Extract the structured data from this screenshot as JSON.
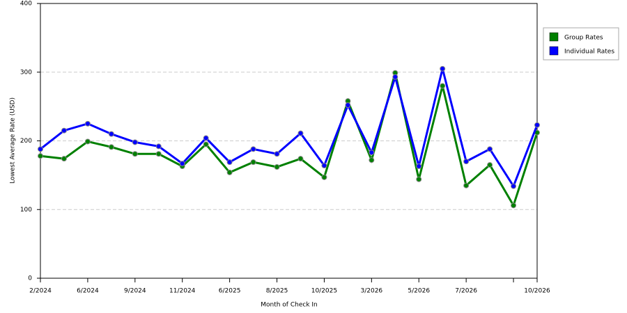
{
  "chart_data": {
    "type": "line",
    "x_label": "Month of Check In",
    "y_label": "Lowest Average Rate (USD)",
    "categories": [
      "2/2024",
      null,
      "6/2024",
      null,
      "9/2024",
      null,
      "11/2024",
      null,
      "6/2025",
      null,
      "8/2025",
      null,
      "10/2025",
      null,
      "3/2026",
      null,
      "5/2026",
      null,
      "7/2026",
      null,
      null,
      "10/2026"
    ],
    "series": [
      {
        "name": "Group Rates",
        "color": "#008000",
        "values": [
          178,
          174,
          199,
          191,
          181,
          181,
          163,
          195,
          154,
          169,
          162,
          174,
          147,
          258,
          172,
          299,
          144,
          280,
          135,
          165,
          106,
          212
        ]
      },
      {
        "name": "Individual Rates",
        "color": "#0000ff",
        "values": [
          188,
          215,
          225,
          210,
          198,
          192,
          167,
          204,
          169,
          188,
          181,
          211,
          164,
          252,
          183,
          293,
          163,
          305,
          170,
          188,
          134,
          223
        ]
      }
    ],
    "ylim": [
      0,
      400
    ],
    "yticks": [
      0,
      100,
      200,
      300,
      400
    ],
    "grid": true,
    "legend": "right"
  }
}
